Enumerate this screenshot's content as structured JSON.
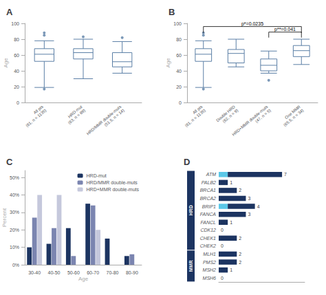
{
  "chart_data": [
    {
      "type": "box",
      "title": "A",
      "ylabel": "Age",
      "categories": [
        "All pts\n(61, n = 1135)",
        "HRD-mut\n(63, n = 89)",
        "HRD/MMR double-muts\n(51.5, n = 14)"
      ],
      "whislo": [
        19,
        30,
        37
      ],
      "q1": [
        52,
        55,
        45
      ],
      "median": [
        61,
        63,
        51.5
      ],
      "q3": [
        68,
        68,
        63
      ],
      "whishi": [
        78,
        80,
        77
      ],
      "fliers_high": [
        [
          85,
          88
        ],
        [
          83
        ],
        [
          82
        ]
      ],
      "fliers_low": [
        [
          17
        ],
        [],
        []
      ],
      "color": "#5b7fa6",
      "ylim": [
        0,
        100
      ],
      "yticks": [
        0,
        20,
        40,
        60,
        80,
        100
      ],
      "grid": false
    },
    {
      "type": "box",
      "title": "B",
      "ylabel": "Age",
      "categories": [
        "All pts\n(61, n = 1135)",
        "Double HRD\n(62, n = 9)",
        "HRD+MMR double-muts\n(47, n = 5)",
        "One MMR\n(65.5, n = 34)"
      ],
      "whislo": [
        19,
        45,
        37,
        48
      ],
      "q1": [
        52,
        50,
        40,
        58
      ],
      "median": [
        61,
        62,
        47,
        65.5
      ],
      "q3": [
        68,
        67,
        55,
        72
      ],
      "whishi": [
        78,
        80,
        65,
        80
      ],
      "fliers_high": [
        [
          85,
          88
        ],
        [],
        [],
        []
      ],
      "fliers_low": [
        [
          17
        ],
        [],
        [
          28
        ],
        []
      ],
      "color": "#5b7fa6",
      "ylim": [
        0,
        100
      ],
      "yticks": [
        0,
        20,
        40,
        60,
        80,
        100
      ],
      "grid": false,
      "annotations": [
        {
          "text": "p*=0.0235",
          "from": "All pts\n(61, n = 1135)",
          "to": "One MMR\n(65.5, n = 34)",
          "y": 96,
          "y_end": 88
        },
        {
          "text": "p**=0.041",
          "from": "HRD+MMR double-muts\n(47, n = 5)",
          "to": "One MMR\n(65.5, n = 34)",
          "y": 89,
          "y_end": 82
        }
      ]
    },
    {
      "type": "bar",
      "title": "C",
      "xlabel": "Age",
      "ylabel": "Percent",
      "categories": [
        "30-40",
        "40-50",
        "50-60",
        "60-70",
        "70-80",
        "80-90"
      ],
      "series": [
        {
          "name": "HRD-mut",
          "color": "#1c3461",
          "values": [
            10,
            12,
            21,
            35,
            15,
            5
          ]
        },
        {
          "name": "HRD/MMR double-muts",
          "color": "#7b85b0",
          "values": [
            27,
            21,
            5,
            34,
            0,
            6
          ]
        },
        {
          "name": "HRD+MMR double-muts",
          "color": "#c5c8dc",
          "values": [
            40,
            40,
            0,
            20,
            0,
            0
          ]
        }
      ],
      "ylim": [
        0,
        54
      ],
      "yticks": [
        {
          "value": 0,
          "label": "0%"
        },
        {
          "value": 10,
          "label": "10%"
        },
        {
          "value": 20,
          "label": "20%"
        },
        {
          "value": 30,
          "label": "30%"
        },
        {
          "value": 40,
          "label": "40%"
        },
        {
          "value": 50,
          "label": "50%"
        }
      ],
      "legend": "upper right",
      "grid": false
    },
    {
      "type": "bar",
      "title": "D",
      "orientation": "horizontal",
      "stacked": true,
      "categories": [
        "ATM",
        "PALB2",
        "BRCA1",
        "BRCA2",
        "BRIP1",
        "FANCA",
        "FANCL",
        "CDK12",
        "CHEK1",
        "CHEK2",
        "MLH1",
        "PMS2",
        "MSH2",
        "MSH6"
      ],
      "series": [
        {
          "color": "#5bc8e8",
          "values": [
            1,
            0,
            0,
            0,
            1,
            0,
            0,
            0,
            0,
            0,
            0,
            0,
            0,
            0
          ]
        },
        {
          "color": "#1c3461",
          "values": [
            6,
            1,
            2,
            3,
            3,
            3,
            1,
            0,
            2,
            0,
            2,
            2,
            1,
            0
          ]
        }
      ],
      "values": [
        7,
        1,
        2,
        3,
        4,
        3,
        1,
        0,
        2,
        0,
        2,
        2,
        1,
        0
      ],
      "data_labels": true,
      "xlim": [
        0,
        9.5
      ],
      "tick_labels": "y",
      "grid": false,
      "groups": [
        {
          "label": "HRD",
          "color": "#1c3461",
          "categories": [
            "ATM",
            "PALB2",
            "BRCA1",
            "BRCA2",
            "BRIP1",
            "FANCA",
            "FANCL",
            "CDK12",
            "CHEK1",
            "CHEK2"
          ]
        },
        {
          "label": "MMR",
          "color": "#1c3461",
          "categories": [
            "MLH1",
            "PMS2",
            "MSH2",
            "MSH6"
          ]
        }
      ]
    }
  ]
}
